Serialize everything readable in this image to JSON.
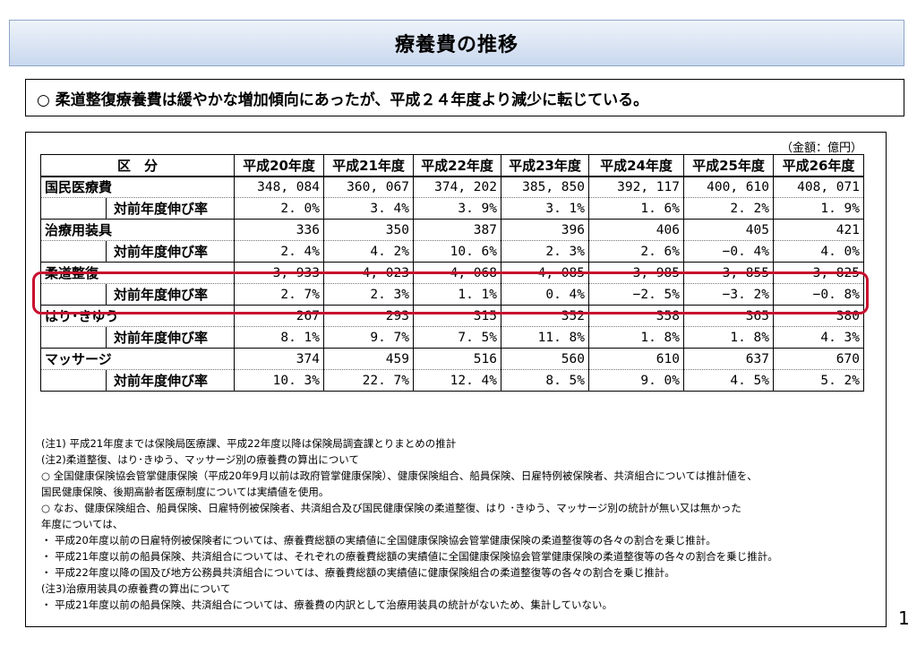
{
  "title": "療養費の推移",
  "summary": "○ 柔道整復療養費は緩やかな増加傾向にあったが、平成２４年度より減少に転じている。",
  "unit": "（金額：億円）",
  "table": {
    "header_category": "区　分",
    "years": [
      "平成20年度",
      "平成21年度",
      "平成22年度",
      "平成23年度",
      "平成24年度",
      "平成25年度",
      "平成26年度"
    ],
    "growth_label": "対前年度伸び率",
    "rows": [
      {
        "name": "国民医療費",
        "values": [
          "348, 084",
          "360, 067",
          "374, 202",
          "385, 850",
          "392, 117",
          "400, 610",
          "408, 071"
        ],
        "growth": [
          "2. 0%",
          "3. 4%",
          "3. 9%",
          "3. 1%",
          "1. 6%",
          "2. 2%",
          "1. 9%"
        ]
      },
      {
        "name": "治療用装具",
        "values": [
          "336",
          "350",
          "387",
          "396",
          "406",
          "405",
          "421"
        ],
        "growth": [
          "2. 4%",
          "4. 2%",
          "10. 6%",
          "2. 3%",
          "2. 6%",
          "−0. 4%",
          "4. 0%"
        ]
      },
      {
        "name": "柔道整復",
        "values": [
          "3, 933",
          "4, 023",
          "4, 068",
          "4, 085",
          "3, 985",
          "3, 855",
          "3, 825"
        ],
        "growth": [
          "2. 7%",
          "2. 3%",
          "1. 1%",
          "0. 4%",
          "−2. 5%",
          "−3. 2%",
          "−0. 8%"
        ]
      },
      {
        "name": "はり･きゆう",
        "values": [
          "267",
          "293",
          "315",
          "352",
          "358",
          "365",
          "380"
        ],
        "growth": [
          "8. 1%",
          "9. 7%",
          "7. 5%",
          "11. 8%",
          "1. 8%",
          "1. 8%",
          "4. 3%"
        ]
      },
      {
        "name": "マッサージ",
        "values": [
          "374",
          "459",
          "516",
          "560",
          "610",
          "637",
          "670"
        ],
        "growth": [
          "10. 3%",
          "22. 7%",
          "12. 4%",
          "8. 5%",
          "9. 0%",
          "4. 5%",
          "5. 2%"
        ]
      }
    ]
  },
  "notes": [
    "(注1)  平成21年度までは保険局医療課、平成22年度以降は保険局調査課とりまとめの推計",
    "(注2)柔道整復、はり･きゆう、マッサージ別の療養費の算出について",
    "○  全国健康保険協会管掌健康保険（平成20年9月以前は政府管掌健康保険）、健康保険組合、船員保険、日雇特例被保険者、共済組合については推計値を、",
    "    国民健康保険、後期高齢者医療制度については実績値を使用。",
    "○  なお、健康保険組合、船員保険、日雇特例被保険者、共済組合及び国民健康保険の柔道整復、はり ･きゆう、マッサージ別の統計が無い又は無かった",
    "    年度については、",
    "・  平成20年度以前の日雇特例被保険者については、療養費総額の実績値に全国健康保険協会管掌健康保険の柔道整復等の各々の割合を乗じ推計。",
    "・  平成21年度以前の船員保険、共済組合については、それぞれの療養費総額の実績値に全国健康保険協会管掌健康保険の柔道整復等の各々の割合を乗じ推計。",
    "・  平成22年度以降の国及び地方公務員共済組合については、療養費総額の実績値に健康保険組合の柔道整復等の各々の割合を乗じ推計。",
    "(注3)治療用装具の療養費の算出について",
    "・  平成21年度以前の船員保険、共済組合については、療養費の内訳として治療用装具の統計がないため、集計していない。"
  ],
  "page_number": "1"
}
